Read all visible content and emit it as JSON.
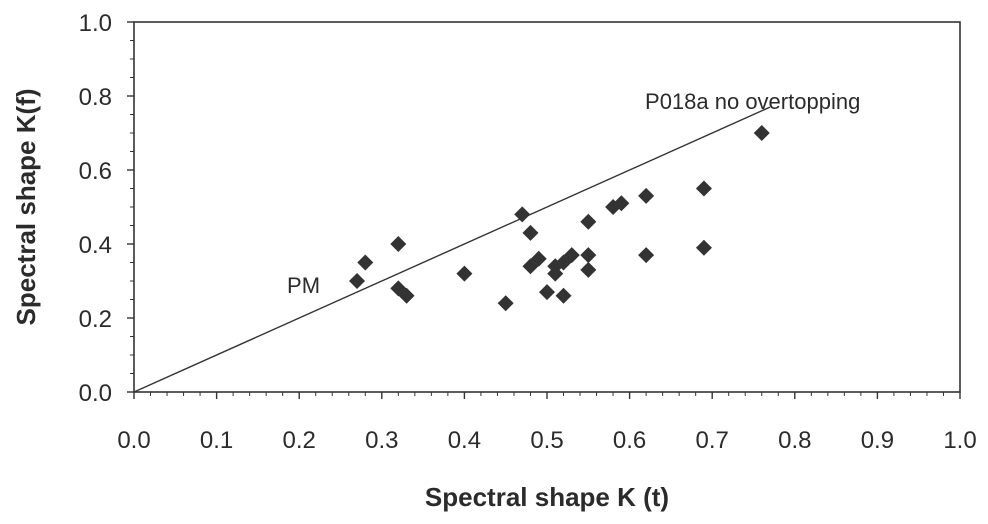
{
  "chart_data": {
    "type": "scatter",
    "xlabel": "Spectral shape Κ (t)",
    "ylabel": "Spectral shape Κ(f)",
    "xlim": [
      0.0,
      1.0
    ],
    "ylim": [
      0.0,
      1.0
    ],
    "x_ticks": [
      "0.0",
      "0.1",
      "0.2",
      "0.3",
      "0.4",
      "0.5",
      "0.6",
      "0.7",
      "0.8",
      "0.9",
      "1.0"
    ],
    "y_ticks": [
      "0.0",
      "0.2",
      "0.4",
      "0.6",
      "0.8",
      "1.0"
    ],
    "grid": false,
    "series": [
      {
        "marker": "diamond",
        "color": "#333333",
        "points": [
          [
            0.27,
            0.3
          ],
          [
            0.28,
            0.35
          ],
          [
            0.32,
            0.4
          ],
          [
            0.32,
            0.28
          ],
          [
            0.33,
            0.26
          ],
          [
            0.4,
            0.32
          ],
          [
            0.45,
            0.24
          ],
          [
            0.47,
            0.48
          ],
          [
            0.48,
            0.43
          ],
          [
            0.48,
            0.34
          ],
          [
            0.49,
            0.36
          ],
          [
            0.5,
            0.27
          ],
          [
            0.51,
            0.34
          ],
          [
            0.51,
            0.32
          ],
          [
            0.52,
            0.35
          ],
          [
            0.52,
            0.26
          ],
          [
            0.53,
            0.37
          ],
          [
            0.55,
            0.46
          ],
          [
            0.55,
            0.37
          ],
          [
            0.55,
            0.33
          ],
          [
            0.58,
            0.5
          ],
          [
            0.59,
            0.51
          ],
          [
            0.62,
            0.53
          ],
          [
            0.62,
            0.37
          ],
          [
            0.69,
            0.55
          ],
          [
            0.69,
            0.39
          ],
          [
            0.76,
            0.7
          ]
        ]
      }
    ],
    "reference_line": {
      "from": [
        0.0,
        0.0
      ],
      "to": [
        0.77,
        0.77
      ],
      "color": "#333333"
    },
    "annotations": [
      {
        "text": "PM",
        "x": 0.27,
        "y": 0.3
      },
      {
        "text": "P018a no overtopping",
        "x": 0.77,
        "y": 0.77
      }
    ]
  }
}
